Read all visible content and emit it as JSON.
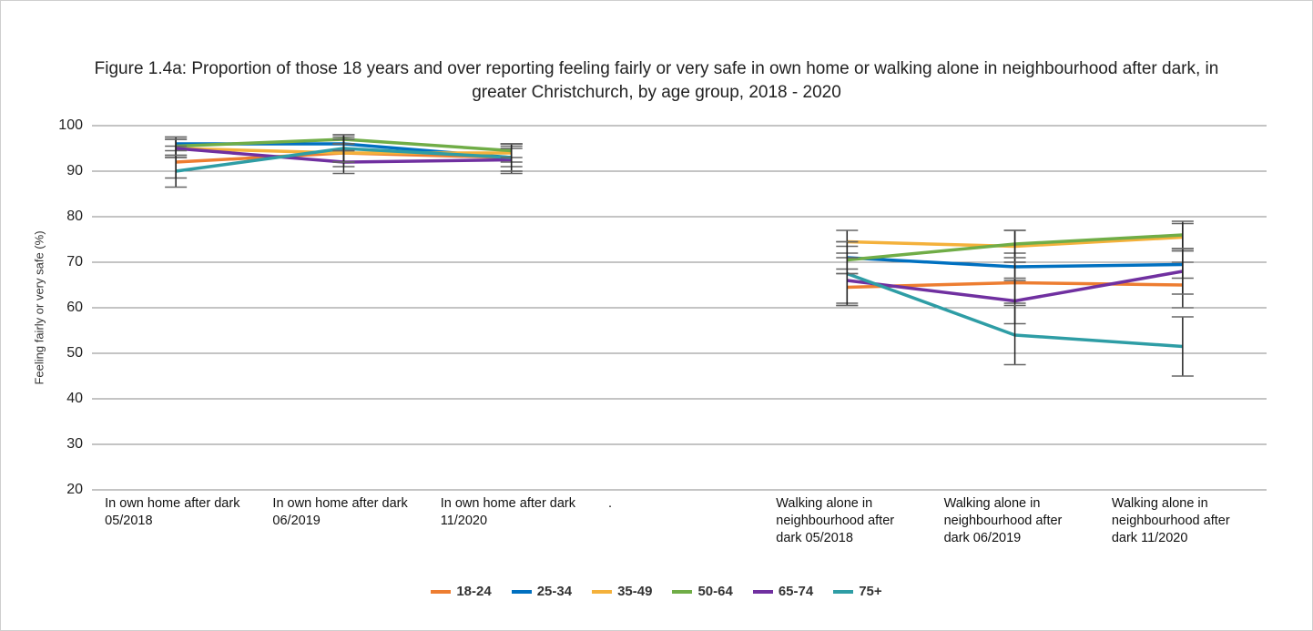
{
  "chart_data": {
    "type": "line",
    "title": "Figure 1.4a: Proportion of those 18 years and over reporting feeling fairly or very safe in own home or walking alone in neighbourhood after dark, in greater Christchurch, by age group, 2018 - 2020",
    "y_label": "Feeling fairly or very safe (%)",
    "categories": [
      "In own home after dark 05/2018",
      "In own home after dark 06/2019",
      "In own home after dark 11/2020",
      ".",
      "Walking alone in neighbourhood after dark 05/2018",
      "Walking alone in neighbourhood after dark 06/2019",
      "Walking alone in neighbourhood after dark 11/2020"
    ],
    "ylim": [
      20,
      100
    ],
    "yticks": [
      20,
      30,
      40,
      50,
      60,
      70,
      80,
      90,
      100
    ],
    "grid": true,
    "legend": "bottom",
    "series": [
      {
        "name": "18-24",
        "color": "#ed7d31",
        "values": [
          92,
          94,
          93,
          null,
          64.5,
          65.5,
          65
        ],
        "errors": [
          3.5,
          3,
          3,
          null,
          4,
          4.5,
          5
        ]
      },
      {
        "name": "25-34",
        "color": "#0070c0",
        "values": [
          96,
          96,
          93,
          null,
          71,
          69,
          69.5
        ],
        "errors": [
          1.5,
          1.5,
          2,
          null,
          3.5,
          3,
          3
        ]
      },
      {
        "name": "35-49",
        "color": "#f4b13b",
        "values": [
          95,
          94,
          94,
          null,
          74.5,
          73.5,
          75.5
        ],
        "errors": [
          2,
          2,
          2,
          null,
          2.5,
          3.5,
          3
        ]
      },
      {
        "name": "50-64",
        "color": "#70ad47",
        "values": [
          95.5,
          97,
          94.5,
          null,
          70.5,
          74,
          76
        ],
        "errors": [
          2,
          1,
          1.5,
          null,
          3,
          3,
          3
        ]
      },
      {
        "name": "65-74",
        "color": "#7030a0",
        "values": [
          95,
          92,
          92.5,
          null,
          66,
          61.5,
          68
        ],
        "errors": [
          2,
          2.5,
          3,
          null,
          5,
          5,
          5
        ]
      },
      {
        "name": "75+",
        "color": "#2e9da5",
        "values": [
          90,
          95,
          93,
          null,
          67.5,
          54,
          51.5
        ],
        "errors": [
          3.5,
          3,
          3,
          null,
          7,
          6.5,
          6.5
        ]
      }
    ]
  }
}
